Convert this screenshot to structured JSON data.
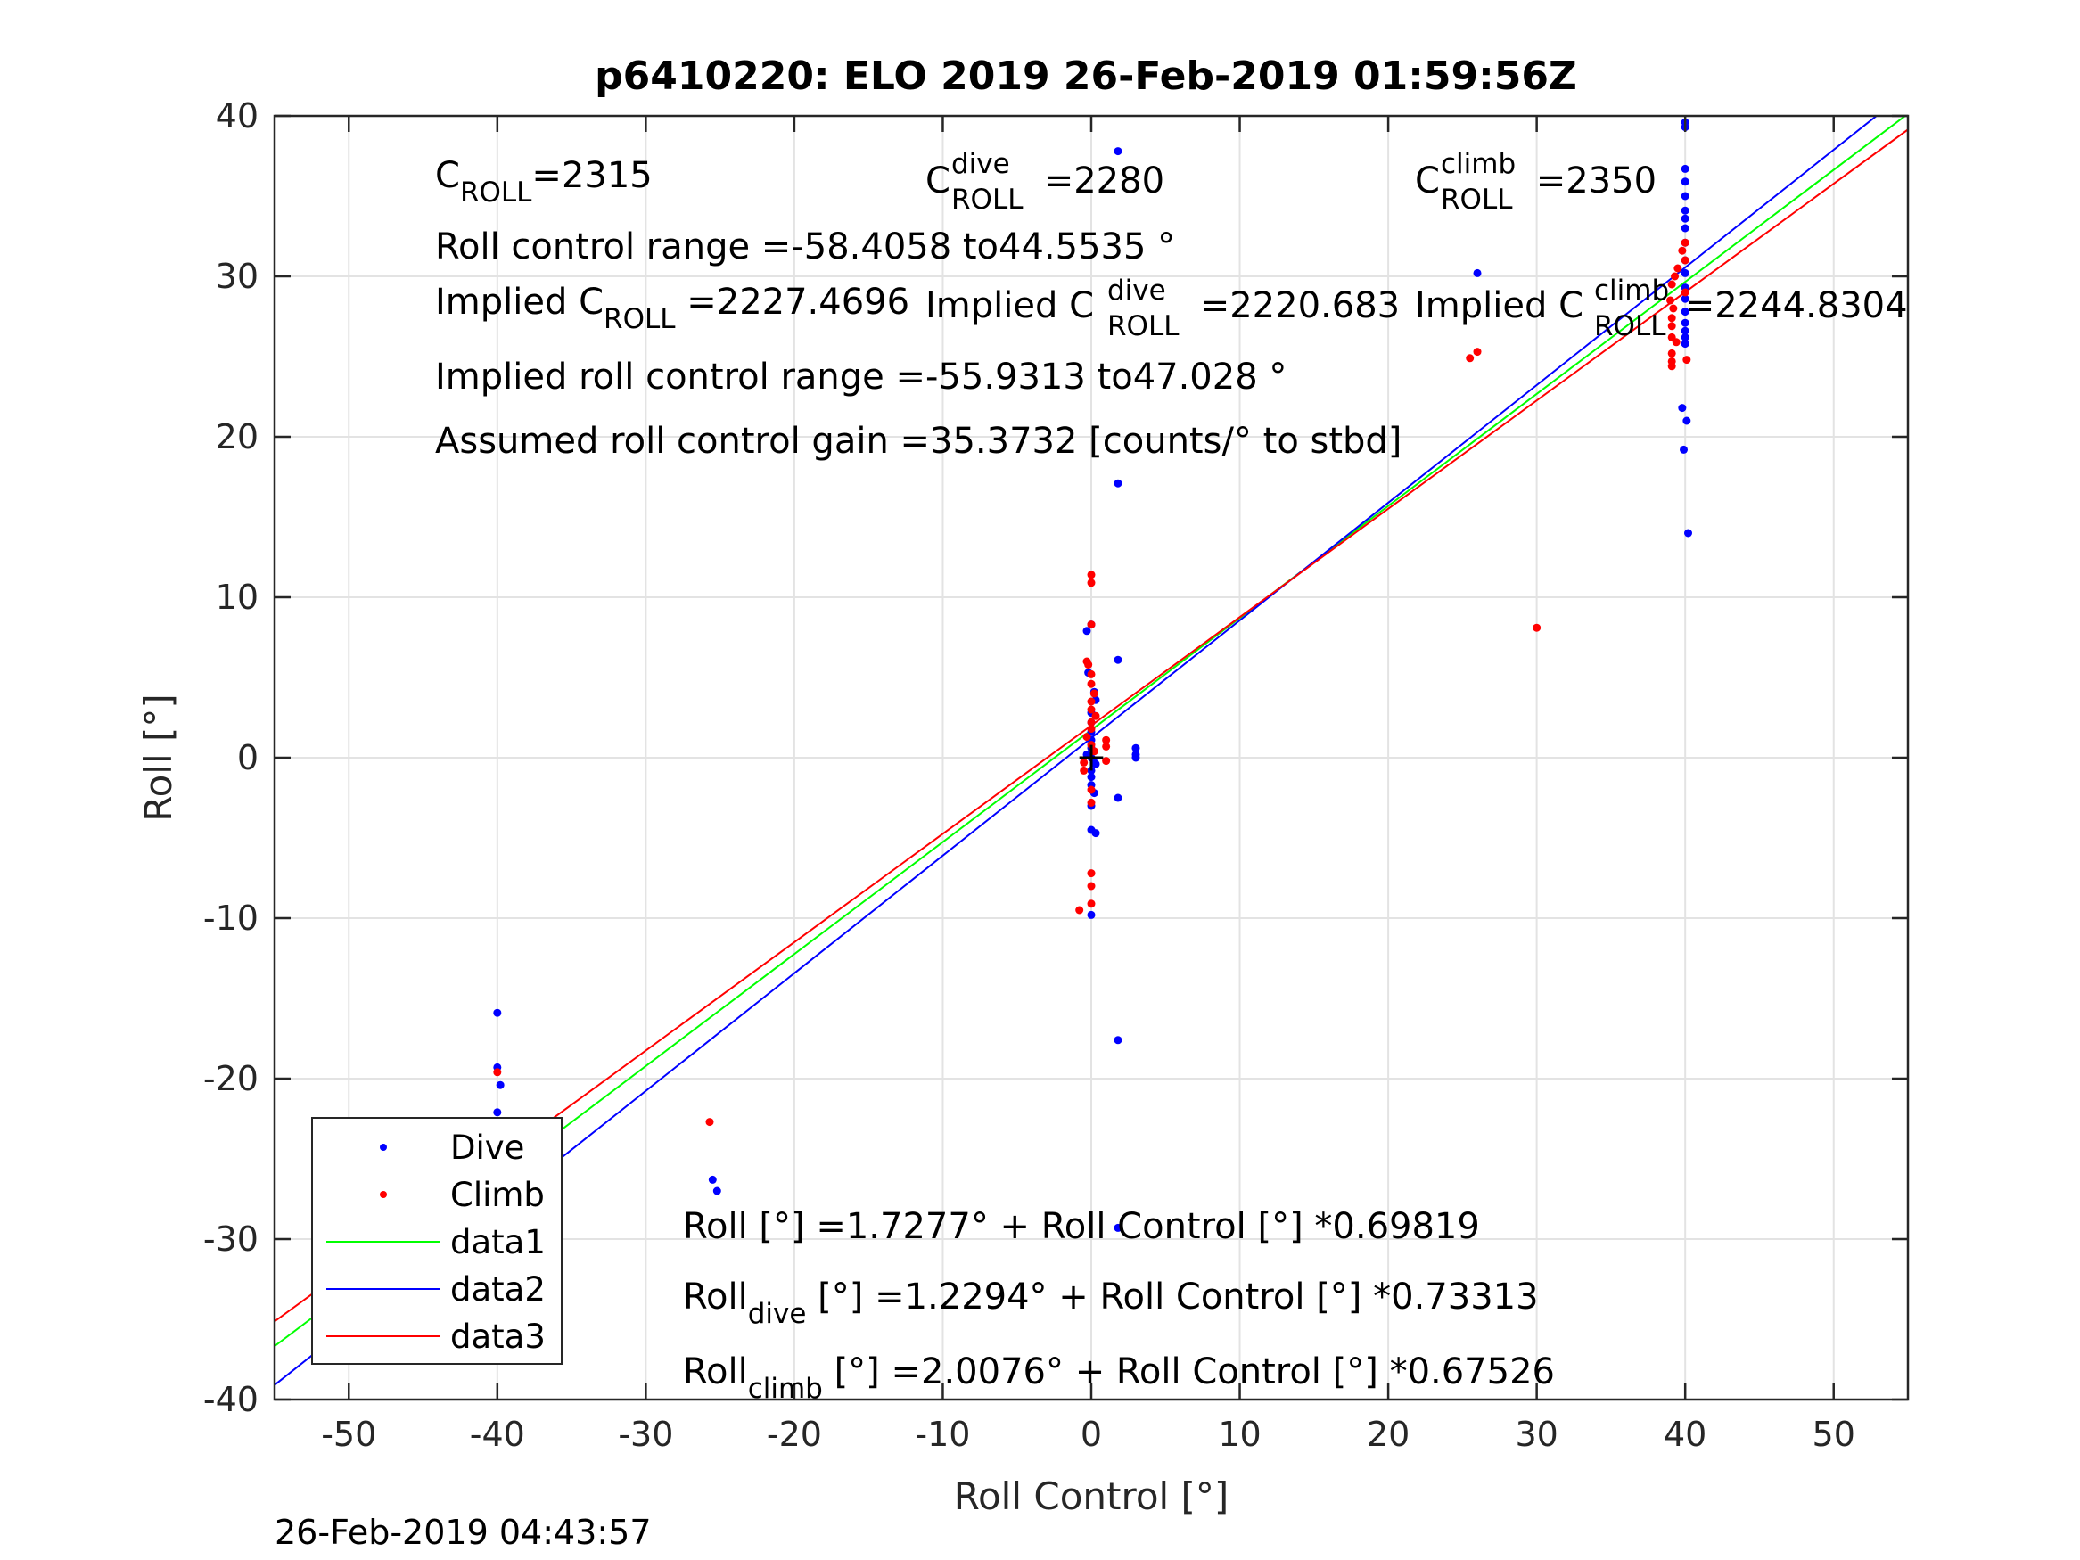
{
  "chart_data": {
    "type": "scatter",
    "title": "p6410220: ELO 2019 26-Feb-2019 01:59:56Z",
    "xlabel": "Roll Control [°]",
    "ylabel": "Roll [°]",
    "xlim": [
      -55,
      55
    ],
    "ylim": [
      -40,
      40
    ],
    "x_ticks": [
      "-50",
      "-40",
      "-30",
      "-20",
      "-10",
      "0",
      "10",
      "20",
      "30",
      "40",
      "50"
    ],
    "y_ticks": [
      "-40",
      "-30",
      "-20",
      "-10",
      "0",
      "10",
      "20",
      "30",
      "40"
    ],
    "grid": true,
    "legend_position": "bottom-left",
    "legend": [
      "Dive",
      "Climb",
      "data1",
      "data2",
      "data3"
    ],
    "series": [
      {
        "name": "Dive",
        "kind": "points",
        "color": "#0000ff",
        "points": [
          [
            -40,
            -15.9
          ],
          [
            -40,
            -19.3
          ],
          [
            -39.8,
            -20.4
          ],
          [
            -40,
            -22.1
          ],
          [
            -40,
            -23
          ],
          [
            -40,
            -24
          ],
          [
            -40,
            -25.1
          ],
          [
            -40,
            -26.3
          ],
          [
            -40,
            -27.3
          ],
          [
            -40,
            -27.8
          ],
          [
            -40,
            -28.3
          ],
          [
            -40,
            -28.8
          ],
          [
            -39.7,
            -28
          ],
          [
            -40,
            -29
          ],
          [
            -25.5,
            -26.3
          ],
          [
            -25.2,
            -27
          ],
          [
            0,
            8.3
          ],
          [
            -0.3,
            7.9
          ],
          [
            -0.2,
            5.3
          ],
          [
            0.2,
            4.1
          ],
          [
            0.3,
            3.6
          ],
          [
            0,
            2.8
          ],
          [
            0,
            2.2
          ],
          [
            0,
            1.6
          ],
          [
            0,
            1.1
          ],
          [
            0,
            0.6
          ],
          [
            0,
            0
          ],
          [
            0.2,
            -0.3
          ],
          [
            0,
            -0.8
          ],
          [
            0,
            -1.2
          ],
          [
            0,
            -1.7
          ],
          [
            0.2,
            -2.2
          ],
          [
            0,
            -3
          ],
          [
            0,
            -4.5
          ],
          [
            0.3,
            -4.7
          ],
          [
            0,
            -9.8
          ],
          [
            -0.3,
            0.2
          ],
          [
            0.3,
            -0.4
          ],
          [
            1.8,
            6.1
          ],
          [
            1.8,
            17.1
          ],
          [
            1.8,
            37.8
          ],
          [
            1.8,
            -2.5
          ],
          [
            1.8,
            -17.6
          ],
          [
            1.8,
            -29.3
          ],
          [
            3,
            0.6
          ],
          [
            3,
            0.2
          ],
          [
            3,
            0
          ],
          [
            26,
            30.2
          ],
          [
            40,
            39.6
          ],
          [
            40,
            39.3
          ],
          [
            40,
            36.7
          ],
          [
            40,
            35.9
          ],
          [
            40,
            35
          ],
          [
            40,
            34.1
          ],
          [
            40,
            33.6
          ],
          [
            40,
            33
          ],
          [
            40,
            32.1
          ],
          [
            40,
            31
          ],
          [
            40,
            30.2
          ],
          [
            40,
            29.3
          ],
          [
            40,
            28.6
          ],
          [
            40,
            27.8
          ],
          [
            40,
            27.1
          ],
          [
            40,
            26.6
          ],
          [
            40,
            26.2
          ],
          [
            40,
            25.8
          ],
          [
            39.8,
            21.8
          ],
          [
            40.1,
            21
          ],
          [
            39.9,
            19.2
          ],
          [
            40.2,
            14
          ]
        ]
      },
      {
        "name": "Climb",
        "kind": "points",
        "color": "#ff0000",
        "points": [
          [
            -40,
            -19.6
          ],
          [
            -40,
            -22.8
          ],
          [
            -40,
            -23.4
          ],
          [
            -40,
            -24
          ],
          [
            -40,
            -24.5
          ],
          [
            -40,
            -25
          ],
          [
            -40,
            -25.5
          ],
          [
            -40,
            -26
          ],
          [
            -40,
            -26.5
          ],
          [
            -39.8,
            -25.2
          ],
          [
            -25.7,
            -22.7
          ],
          [
            0,
            11.4
          ],
          [
            0,
            10.9
          ],
          [
            0,
            8.3
          ],
          [
            -0.3,
            6
          ],
          [
            -0.2,
            5.8
          ],
          [
            0,
            5.2
          ],
          [
            0,
            4.6
          ],
          [
            0.2,
            4
          ],
          [
            0,
            3.5
          ],
          [
            0,
            3
          ],
          [
            0.3,
            2.6
          ],
          [
            0,
            2.2
          ],
          [
            0,
            1.8
          ],
          [
            -0.3,
            1.3
          ],
          [
            0,
            0.8
          ],
          [
            0.2,
            0.4
          ],
          [
            -0.5,
            -0.3
          ],
          [
            -0.5,
            -0.8
          ],
          [
            1,
            -0.2
          ],
          [
            1,
            0.7
          ],
          [
            1,
            1.1
          ],
          [
            0,
            -2
          ],
          [
            0,
            -2.8
          ],
          [
            0,
            -7.2
          ],
          [
            0,
            -8
          ],
          [
            0,
            -9.1
          ],
          [
            -0.8,
            -9.5
          ],
          [
            25.5,
            24.9
          ],
          [
            26,
            25.3
          ],
          [
            30,
            8.1
          ],
          [
            40,
            32.1
          ],
          [
            39.8,
            31.6
          ],
          [
            40,
            31
          ],
          [
            39.5,
            30.5
          ],
          [
            39.3,
            30
          ],
          [
            39.1,
            29.5
          ],
          [
            40,
            29
          ],
          [
            39,
            28.5
          ],
          [
            39.2,
            28
          ],
          [
            39.1,
            27.4
          ],
          [
            39.1,
            26.9
          ],
          [
            39.1,
            26.2
          ],
          [
            39.4,
            25.9
          ],
          [
            39.1,
            25.2
          ],
          [
            39.1,
            24.7
          ],
          [
            39.1,
            24.4
          ],
          [
            40.1,
            24.8
          ]
        ]
      },
      {
        "name": "data1",
        "kind": "line",
        "color": "#00ff00",
        "intercept": 1.7277,
        "slope": 0.69819
      },
      {
        "name": "data2",
        "kind": "line",
        "color": "#0000ff",
        "intercept": 1.2294,
        "slope": 0.73313
      },
      {
        "name": "data3",
        "kind": "line",
        "color": "#ff0000",
        "intercept": 2.0076,
        "slope": 0.67526
      }
    ],
    "reference_marker": {
      "color": "#000000",
      "x": [
        -0.8,
        0.8
      ],
      "y": [
        -0.8,
        0.8
      ]
    }
  },
  "annotations": {
    "c_roll": {
      "base": "C",
      "sub": "ROLL",
      "rest": "=2315"
    },
    "c_roll_dive": {
      "base": "C",
      "sup": "dive",
      "sub": "ROLL",
      "rest": " =2280"
    },
    "c_roll_climb": {
      "base": "C",
      "sup": "climb",
      "sub": "ROLL",
      "rest": " =2350"
    },
    "roll_control_range": "Roll control range =-58.4058 to44.5535 °",
    "implied_c_roll": {
      "base": "Implied C",
      "sub": "ROLL",
      "rest": " =2227.4696"
    },
    "implied_c_roll_dive": {
      "base": "Implied C",
      "sup": "dive",
      "sub": "ROLL",
      "rest": " =2220.683"
    },
    "implied_c_roll_climb": {
      "base": "Implied C",
      "sup": "climb",
      "sub": "ROLL",
      "rest": " =2244.8304"
    },
    "implied_roll_control_range": "Implied roll control range =-55.9313 to47.028 °",
    "assumed_gain": "Assumed roll control gain =35.3732 [counts/° to stbd]",
    "fit_all": "Roll [°] =1.7277° + Roll Control [°] *0.69819",
    "fit_dive": {
      "base": "Roll",
      "sub": "dive",
      "rest": " [°] =1.2294° + Roll Control [°] *0.73313"
    },
    "fit_climb": {
      "base": "Roll",
      "sub": "climb",
      "rest": " [°] =2.0076° + Roll Control [°] *0.67526"
    }
  },
  "footer_timestamp": "26-Feb-2019 04:43:57"
}
